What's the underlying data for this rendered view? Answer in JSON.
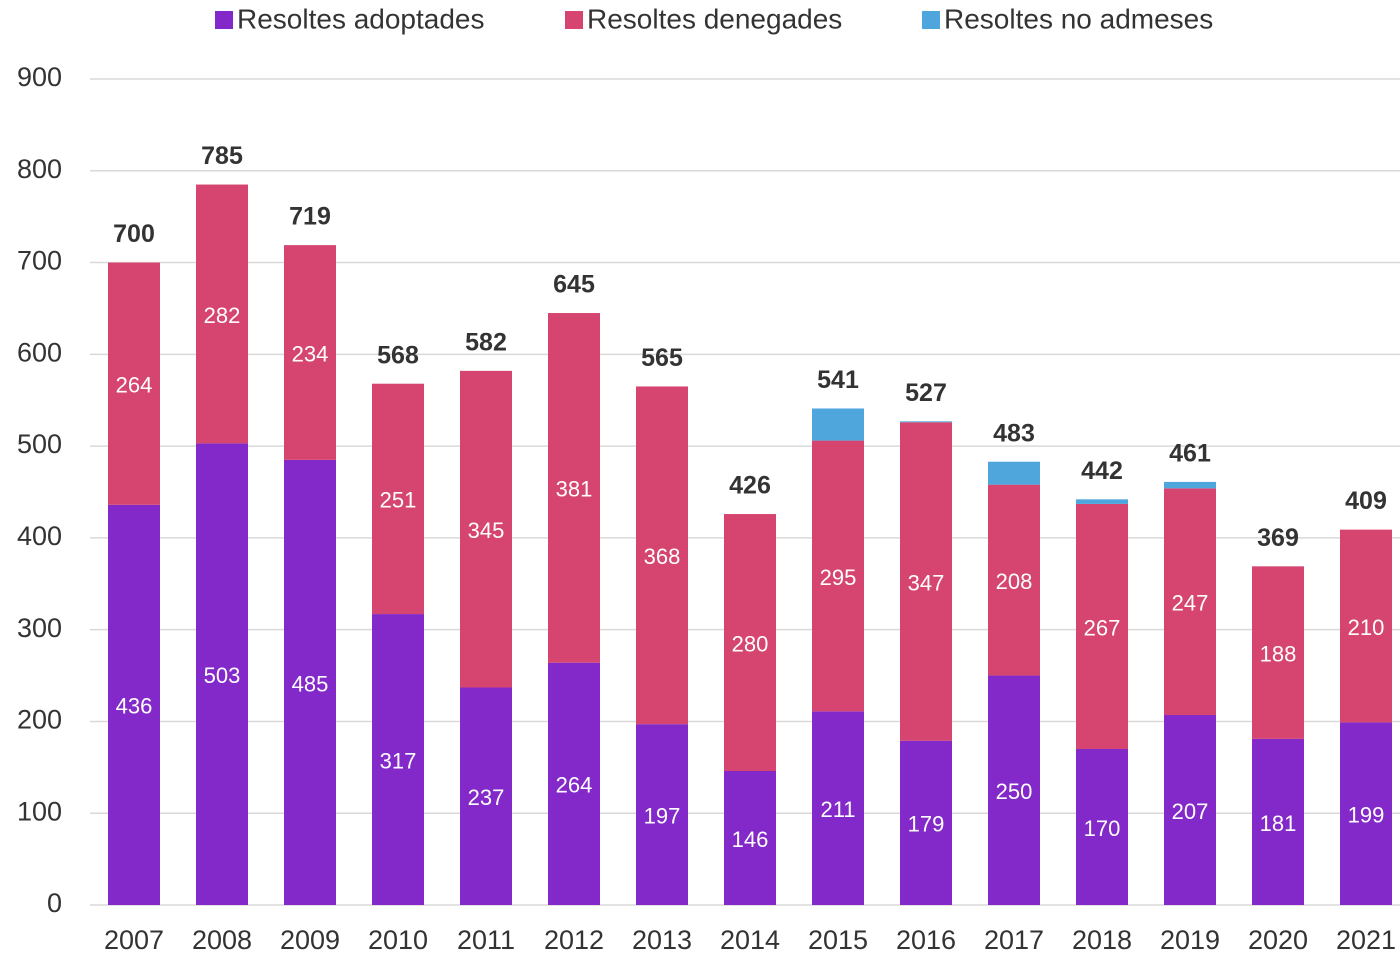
{
  "chart_data": {
    "type": "stacked_bar",
    "categories": [
      "2007",
      "2008",
      "2009",
      "2010",
      "2011",
      "2012",
      "2013",
      "2014",
      "2015",
      "2016",
      "2017",
      "2018",
      "2019",
      "2020",
      "2021"
    ],
    "series": [
      {
        "name": "Resoltes adoptades",
        "color": "#8329c9",
        "show_labels": true,
        "values": [
          436,
          503,
          485,
          317,
          237,
          264,
          197,
          146,
          211,
          179,
          250,
          170,
          207,
          181,
          199
        ]
      },
      {
        "name": "Resoltes denegades",
        "color": "#d6456f",
        "show_labels": true,
        "values": [
          264,
          282,
          234,
          251,
          345,
          381,
          368,
          280,
          295,
          347,
          208,
          267,
          247,
          188,
          210
        ]
      },
      {
        "name": "Resoltes no admeses",
        "color": "#4ea6dc",
        "show_labels": false,
        "values": [
          0,
          0,
          0,
          0,
          0,
          0,
          0,
          0,
          35,
          1,
          25,
          5,
          7,
          0,
          0
        ]
      }
    ],
    "totals": [
      700,
      785,
      719,
      568,
      582,
      645,
      565,
      426,
      541,
      527,
      483,
      442,
      461,
      369,
      409
    ],
    "ylim": [
      0,
      900
    ],
    "yticks": [
      0,
      100,
      200,
      300,
      400,
      500,
      600,
      700,
      800,
      900
    ],
    "grid": true,
    "legend": "top"
  }
}
